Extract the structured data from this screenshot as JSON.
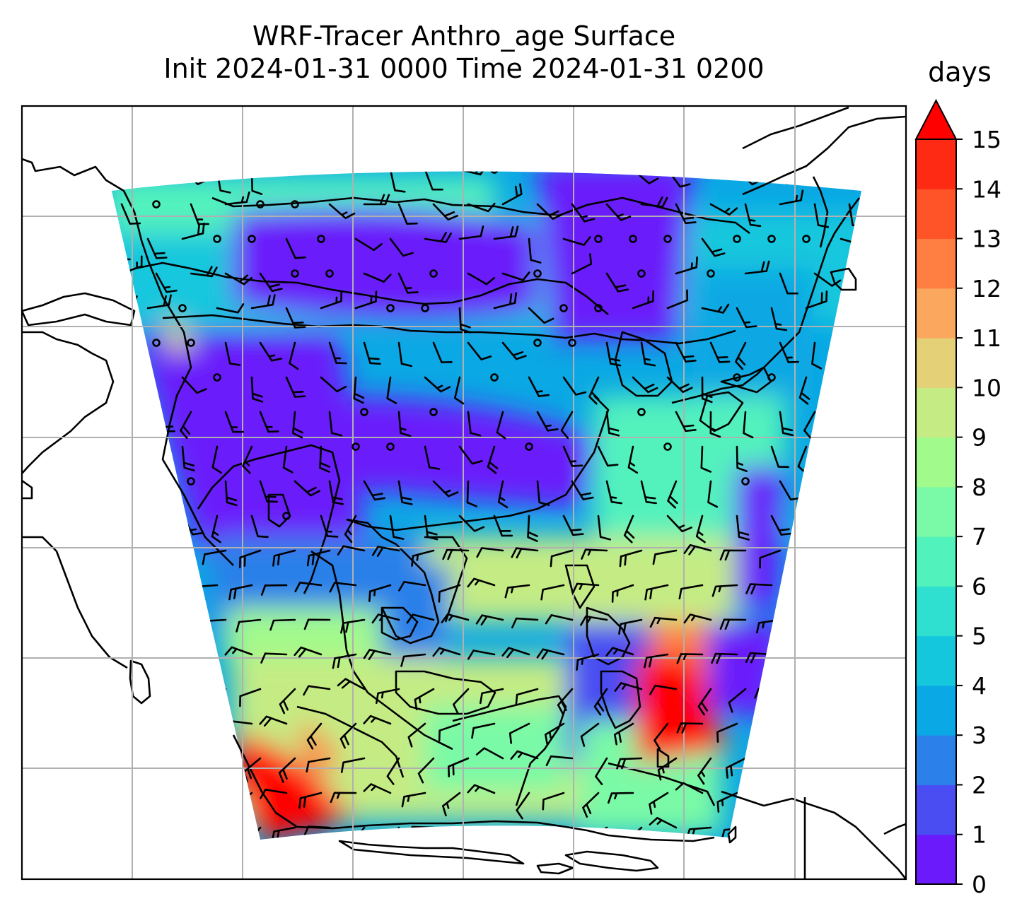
{
  "title": {
    "line1": "WRF-Tracer Anthro_age Surface",
    "line2": "Init 2024-01-31 0000 Time 2024-01-31 0200"
  },
  "colorbar": {
    "units": "days",
    "ticks": [
      "0",
      "1",
      "2",
      "3",
      "4",
      "5",
      "6",
      "7",
      "8",
      "9",
      "10",
      "11",
      "12",
      "13",
      "14",
      "15"
    ],
    "extend": "max",
    "colors": [
      "#6a1afb",
      "#4a4ef2",
      "#2c80e9",
      "#0aa8e4",
      "#15c7dd",
      "#2fe0d0",
      "#52f2bd",
      "#7afaa6",
      "#a1fa8c",
      "#c5ec84",
      "#e4d077",
      "#fba75e",
      "#ff7e42",
      "#ff5428",
      "#ff2a14",
      "#ff0000"
    ]
  },
  "map": {
    "projection": "lambert-conformal",
    "gridlines": "on",
    "field": "anthropogenic tracer age (surface)",
    "overlay": "wind barbs"
  }
}
